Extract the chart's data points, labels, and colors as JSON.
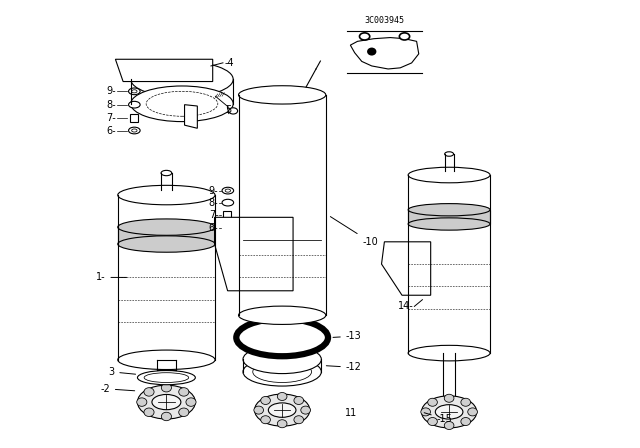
{
  "bg_color": "#ffffff",
  "line_color": "#000000",
  "diagram_code": "3C003945",
  "fig_width": 6.4,
  "fig_height": 4.48
}
